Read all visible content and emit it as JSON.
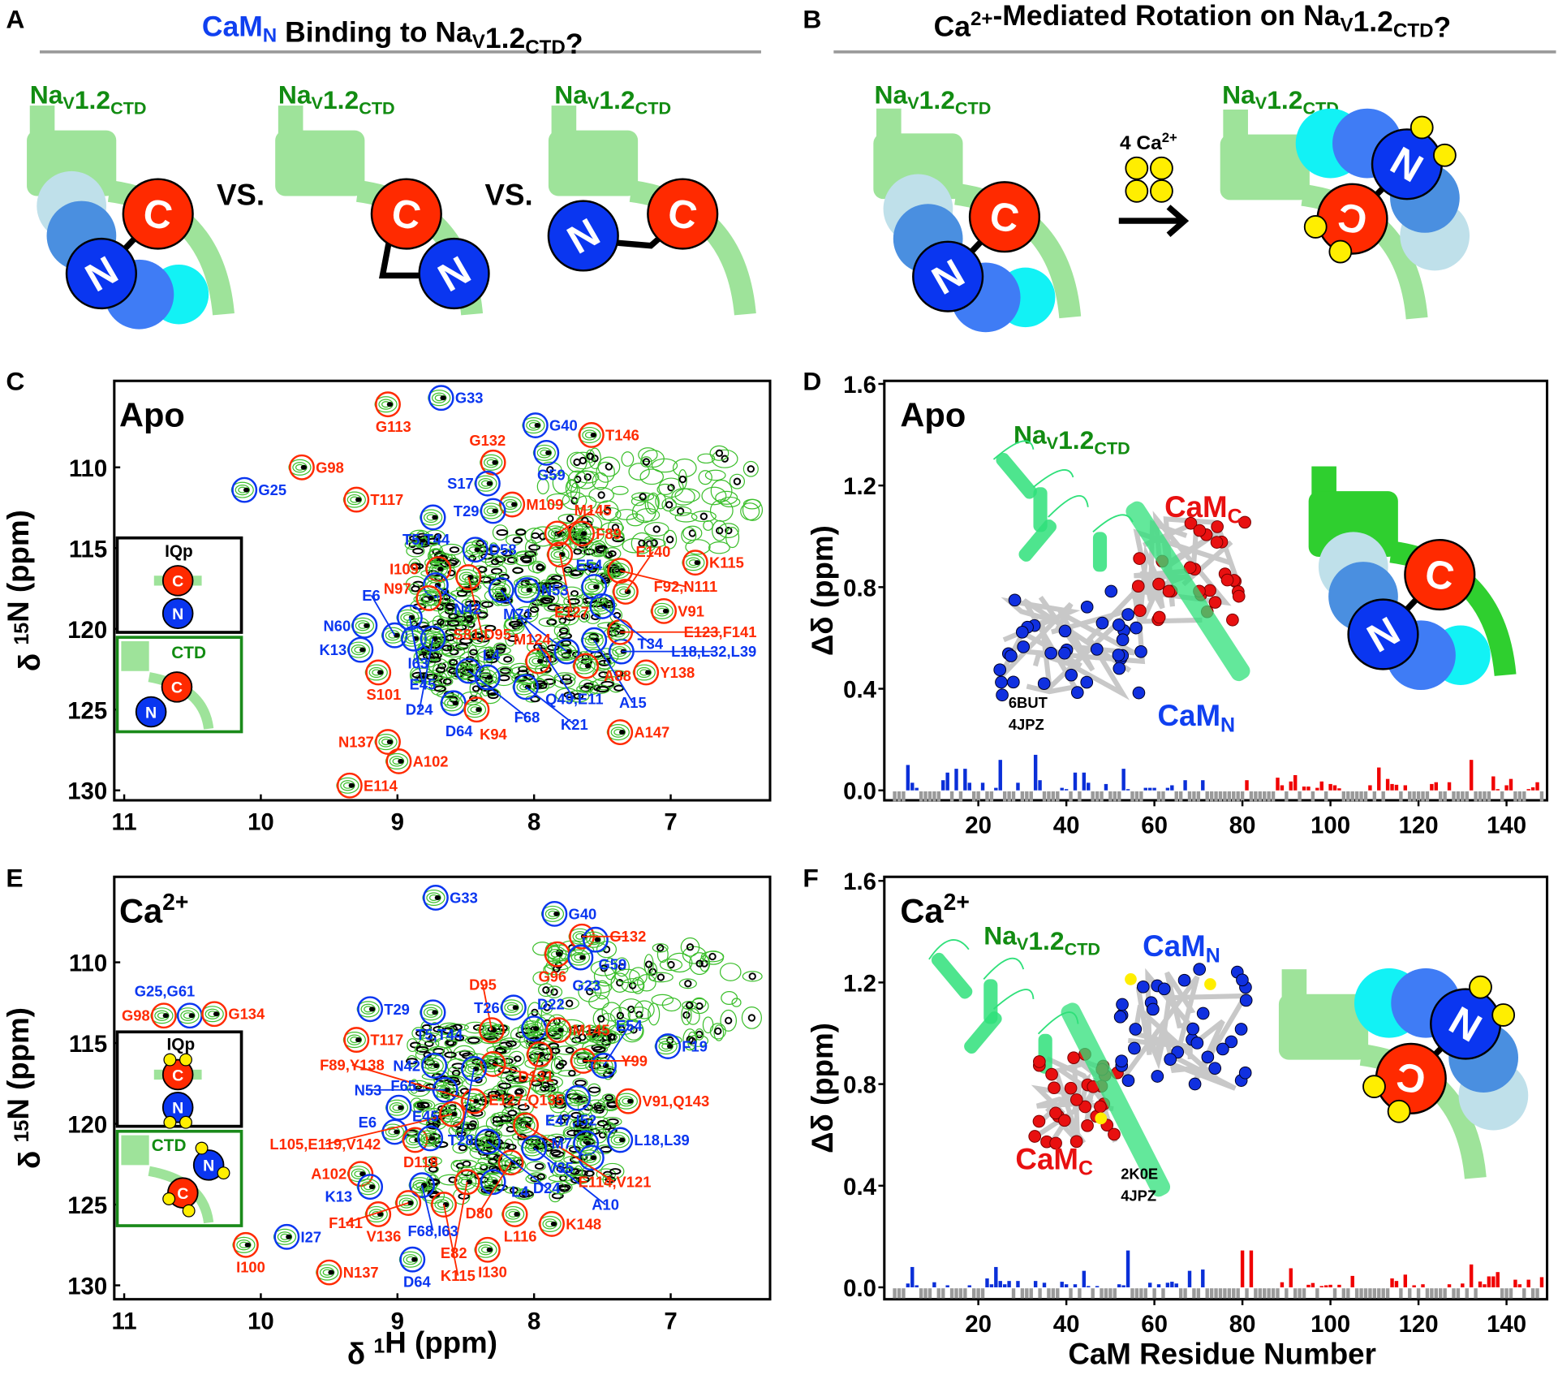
{
  "panel_letters": {
    "a": "A",
    "b": "B",
    "c": "C",
    "d": "D",
    "e": "E",
    "f": "F"
  },
  "colors": {
    "red": "#ff2a00",
    "blue": "#0a36f0",
    "green_text": "#128c12",
    "ctd_green": "#9ee39a",
    "ctd_dark": "#2fcf2f",
    "light_blue": "#bfe0ea",
    "mid_blue": "#4a8fe0",
    "royal_blue": "#3f7cf5",
    "cyan": "#12f2f5",
    "yellow": "#ffee00",
    "gray": "#9a9a9a"
  },
  "cartoon_letters": {
    "c": "C",
    "n": "N"
  },
  "nav_label": [
    [
      "Na",
      ""
    ],
    [
      "V",
      "sub"
    ],
    [
      "1.2",
      ""
    ],
    [
      "CTD",
      "sub"
    ]
  ],
  "panelA": {
    "title": [
      [
        "CaM",
        "",
        "#1040f0"
      ],
      [
        "N",
        "sub",
        "#1040f0"
      ],
      [
        " Binding to Na",
        ""
      ],
      [
        "V",
        "sub"
      ],
      [
        "1.2",
        ""
      ],
      [
        "CTD",
        "sub"
      ],
      [
        "?",
        ""
      ]
    ],
    "vs": "VS."
  },
  "panelB": {
    "title": [
      [
        "Ca",
        ""
      ],
      [
        "2+",
        "sup"
      ],
      [
        "-Mediated Rotation on Na",
        ""
      ],
      [
        "V",
        "sub"
      ],
      [
        "1.2",
        ""
      ],
      [
        "CTD",
        "sub"
      ],
      [
        "?",
        ""
      ]
    ],
    "calcium": [
      [
        "4 Ca",
        ""
      ],
      [
        "2+",
        "sup"
      ]
    ]
  },
  "insets": {
    "iqp": "IQp",
    "ctd": "CTD"
  },
  "structures": {
    "apo": {
      "camc": [
        [
          "CaM",
          ""
        ],
        [
          "C",
          "sub"
        ]
      ],
      "camn": [
        [
          "CaM",
          ""
        ],
        [
          "N",
          "sub"
        ]
      ],
      "pdb": [
        "6BUT",
        "4JPZ"
      ]
    },
    "ca": {
      "camc": [
        [
          "CaM",
          ""
        ],
        [
          "C",
          "sub"
        ]
      ],
      "camn": [
        [
          "CaM",
          ""
        ],
        [
          "N",
          "sub"
        ]
      ],
      "pdb": [
        "2K0E",
        "4JPZ"
      ]
    }
  },
  "chart_data": [
    {
      "panel": "C",
      "type": "scatter",
      "title": "Apo",
      "xlabel": "",
      "ylabel": [
        [
          "δ ",
          ""
        ],
        [
          "15",
          "sup"
        ],
        [
          "N (ppm)",
          ""
        ]
      ],
      "xlim": [
        11,
        6.3
      ],
      "ylim": [
        104,
        131
      ],
      "xticks": [
        11,
        10,
        9,
        8,
        7
      ],
      "yticks": [
        110,
        115,
        120,
        125,
        130
      ],
      "peaks": [
        [
          "G113",
          9.07,
          106.1,
          "r"
        ],
        [
          "G33",
          8.68,
          105.7,
          "b"
        ],
        [
          "G25",
          10.12,
          111.4,
          "b"
        ],
        [
          "G98",
          9.7,
          110.0,
          "r"
        ],
        [
          "T117",
          9.3,
          112.0,
          "r"
        ],
        [
          "G40",
          7.99,
          107.4,
          "b"
        ],
        [
          "T146",
          7.58,
          108.0,
          "r"
        ],
        [
          "G132",
          8.3,
          109.7,
          "r"
        ],
        [
          "G59",
          7.91,
          109.1,
          "b"
        ],
        [
          "S17",
          8.34,
          111.0,
          "b"
        ],
        [
          "M109",
          8.16,
          112.3,
          "r"
        ],
        [
          "T29",
          8.3,
          112.7,
          "b"
        ],
        [
          "T5,T44",
          8.74,
          113.1,
          "b"
        ],
        [
          "D58",
          8.43,
          115.1,
          "b"
        ],
        [
          "M145",
          7.83,
          114.1,
          "r"
        ],
        [
          "F89",
          7.65,
          114.1,
          "r"
        ],
        [
          "E127",
          7.81,
          115.4,
          "r"
        ],
        [
          "F92,N111",
          7.37,
          116.4,
          "r"
        ],
        [
          "K115",
          6.82,
          115.9,
          "r"
        ],
        [
          "I109",
          8.7,
          116.3,
          "r"
        ],
        [
          "N42",
          8.72,
          117.3,
          "b"
        ],
        [
          "N97",
          8.77,
          118.1,
          "r"
        ],
        [
          "S81,D95",
          8.48,
          116.8,
          "r"
        ],
        [
          "Q49,E11",
          8.24,
          117.6,
          "b"
        ],
        [
          "N53",
          8.05,
          117.6,
          "b"
        ],
        [
          "E54",
          7.56,
          117.4,
          "b"
        ],
        [
          "T34",
          7.5,
          118.6,
          "b"
        ],
        [
          "E140",
          7.33,
          117.7,
          "r"
        ],
        [
          "V91",
          7.05,
          118.9,
          "r"
        ],
        [
          "I63",
          8.91,
          119.3,
          "b"
        ],
        [
          "N60",
          9.24,
          119.8,
          "b"
        ],
        [
          "E6",
          9.02,
          120.4,
          "b"
        ],
        [
          "E45",
          8.88,
          120.6,
          "b"
        ],
        [
          "D24",
          8.74,
          120.6,
          "b"
        ],
        [
          "K13",
          9.27,
          121.3,
          "b"
        ],
        [
          "S101",
          9.14,
          122.7,
          "r"
        ],
        [
          "F68",
          8.48,
          122.6,
          "b"
        ],
        [
          "L4",
          8.34,
          123.0,
          "b"
        ],
        [
          "D64",
          8.59,
          124.6,
          "b"
        ],
        [
          "K94",
          8.42,
          125.0,
          "r"
        ],
        [
          "K21",
          8.06,
          123.6,
          "b"
        ],
        [
          "M124",
          7.97,
          122.0,
          "r"
        ],
        [
          "M71",
          7.76,
          121.4,
          "b"
        ],
        [
          "A88",
          7.62,
          122.3,
          "r"
        ],
        [
          "A15",
          7.56,
          120.7,
          "b"
        ],
        [
          "L18,L32,L39",
          7.36,
          121.4,
          "b"
        ],
        [
          "E123,F141",
          7.37,
          120.2,
          "r"
        ],
        [
          "Y138",
          7.18,
          122.7,
          "r"
        ],
        [
          "A147",
          7.37,
          126.4,
          "r"
        ],
        [
          "N137",
          9.07,
          127.0,
          "r"
        ],
        [
          "A102",
          8.99,
          128.2,
          "r"
        ],
        [
          "E114",
          9.35,
          129.7,
          "r"
        ]
      ]
    },
    {
      "panel": "E",
      "type": "scatter",
      "title": [
        [
          "Ca",
          ""
        ],
        [
          "2+",
          "sup"
        ]
      ],
      "xlabel": [
        [
          "δ ",
          ""
        ],
        [
          "1",
          "sup"
        ],
        [
          "H (ppm)",
          ""
        ]
      ],
      "ylabel": [
        [
          "δ ",
          ""
        ],
        [
          "15",
          "sup"
        ],
        [
          "N (ppm)",
          ""
        ]
      ],
      "xlim": [
        11,
        6.3
      ],
      "ylim": [
        104,
        131
      ],
      "xticks": [
        11,
        10,
        9,
        8,
        7
      ],
      "yticks": [
        110,
        115,
        120,
        125,
        130
      ],
      "peaks": [
        [
          "G33",
          8.72,
          106.0,
          "b"
        ],
        [
          "G40",
          7.85,
          107.0,
          "b"
        ],
        [
          "G132",
          7.65,
          108.4,
          "r"
        ],
        [
          "G59",
          7.55,
          108.6,
          "b"
        ],
        [
          "G96",
          7.83,
          109.5,
          "r"
        ],
        [
          "G23",
          7.66,
          109.7,
          "b"
        ],
        [
          "G98",
          10.71,
          113.3,
          "r"
        ],
        [
          "G25,G61",
          10.52,
          113.3,
          "b"
        ],
        [
          "G134",
          10.34,
          113.2,
          "r"
        ],
        [
          "T29",
          9.2,
          112.9,
          "b"
        ],
        [
          "T5,T44",
          8.74,
          113.1,
          "b"
        ],
        [
          "T117",
          9.3,
          114.8,
          "r"
        ],
        [
          "T26",
          8.15,
          112.8,
          "b"
        ],
        [
          "D22",
          8.0,
          114.1,
          "b"
        ],
        [
          "M145",
          7.82,
          114.2,
          "r"
        ],
        [
          "D95",
          8.31,
          114.2,
          "r"
        ],
        [
          "E127,Q135",
          7.96,
          115.7,
          "r"
        ],
        [
          "Y99",
          7.64,
          116.1,
          "r"
        ],
        [
          "E54",
          7.49,
          116.4,
          "b"
        ],
        [
          "F19",
          7.02,
          115.2,
          "b"
        ],
        [
          "D131",
          8.3,
          116.3,
          "r"
        ],
        [
          "T28",
          8.44,
          116.6,
          "b"
        ],
        [
          "N42",
          8.73,
          116.4,
          "b"
        ],
        [
          "N53",
          8.65,
          117.9,
          "b"
        ],
        [
          "F89,Y138",
          8.44,
          118.6,
          "r"
        ],
        [
          "L105,E119,V142",
          8.6,
          119.4,
          "r"
        ],
        [
          "F65",
          8.99,
          119.0,
          "b"
        ],
        [
          "E6",
          9.02,
          120.5,
          "b"
        ],
        [
          "D118",
          8.87,
          121.0,
          "r"
        ],
        [
          "E45",
          8.76,
          120.9,
          "b"
        ],
        [
          "D24",
          8.34,
          121.1,
          "b"
        ],
        [
          "E114,V121",
          8.06,
          120.1,
          "r"
        ],
        [
          "E47,I52",
          7.68,
          118.4,
          "b"
        ],
        [
          "V91,Q143",
          7.31,
          118.6,
          "r"
        ],
        [
          "M7",
          7.62,
          121.2,
          "b"
        ],
        [
          "L18,L39",
          7.37,
          121.0,
          "b"
        ],
        [
          "V35",
          7.58,
          122.1,
          "b"
        ],
        [
          "A10",
          8.0,
          121.5,
          "b"
        ],
        [
          "D80",
          8.17,
          122.4,
          "r"
        ],
        [
          "A102",
          9.27,
          123.1,
          "r"
        ],
        [
          "K13",
          9.2,
          123.9,
          "b"
        ],
        [
          "F68,I63",
          8.82,
          123.8,
          "b"
        ],
        [
          "E82",
          8.49,
          123.6,
          "r"
        ],
        [
          "L4",
          8.3,
          123.6,
          "b"
        ],
        [
          "V136",
          9.14,
          125.6,
          "r"
        ],
        [
          "F141",
          8.92,
          124.9,
          "r"
        ],
        [
          "K115",
          8.66,
          125.0,
          "r"
        ],
        [
          "L116",
          8.14,
          125.6,
          "r"
        ],
        [
          "K148",
          7.87,
          126.2,
          "r"
        ],
        [
          "I27",
          9.81,
          127.0,
          "b"
        ],
        [
          "I100",
          10.11,
          127.5,
          "r"
        ],
        [
          "D64",
          8.89,
          128.4,
          "b"
        ],
        [
          "I130",
          8.34,
          127.8,
          "r"
        ],
        [
          "N137",
          9.5,
          129.2,
          "r"
        ]
      ]
    },
    {
      "panel": "D",
      "type": "bar",
      "title": "Apo",
      "xlabel": "",
      "ylabel": "Δδ (ppm)",
      "xlim": [
        0,
        148
      ],
      "ylim": [
        0,
        1.6
      ],
      "xticks": [
        20,
        40,
        60,
        80,
        100,
        120,
        140
      ],
      "yticks": [
        "0.0",
        "0.4",
        "0.8",
        "1.2",
        "1.6"
      ],
      "lobes": {
        "N": [
          1,
          78
        ],
        "C": [
          79,
          148
        ]
      },
      "residues": [
        4,
        5,
        6,
        12,
        13,
        15,
        17,
        18,
        21,
        24,
        25,
        29,
        33,
        34,
        39,
        40,
        42,
        44,
        45,
        49,
        53,
        54,
        58,
        59,
        60,
        63,
        64,
        67,
        71,
        81,
        88,
        89,
        91,
        92,
        94,
        95,
        97,
        98,
        100,
        101,
        102,
        109,
        111,
        113,
        114,
        115,
        117,
        123,
        124,
        127,
        132,
        137,
        138,
        140,
        141,
        145,
        146,
        147
      ],
      "values": [
        0.1,
        0.03,
        0.01,
        0.04,
        0.07,
        0.085,
        0.085,
        0.03,
        0.03,
        0.01,
        0.12,
        0.03,
        0.14,
        0.04,
        0.01,
        0.005,
        0.07,
        0.07,
        0.03,
        0.025,
        0.085,
        0.005,
        0.01,
        0.01,
        0.01,
        0.01,
        0.02,
        0.04,
        0.04,
        0.04,
        0.05,
        0.02,
        0.035,
        0.06,
        0.015,
        0.015,
        0.01,
        0.035,
        0.025,
        0.02,
        0.008,
        0.02,
        0.09,
        0.045,
        0.025,
        0.022,
        0.02,
        0.025,
        0.032,
        0.032,
        0.12,
        0.055,
        0.005,
        0.02,
        0.045,
        0.005,
        0.012,
        0.032
      ]
    },
    {
      "panel": "F",
      "type": "bar",
      "title": [
        [
          "Ca",
          ""
        ],
        [
          "2+",
          "sup"
        ]
      ],
      "xlabel": "CaM Residue Number",
      "ylabel": "Δδ (ppm)",
      "xlim": [
        0,
        148
      ],
      "ylim": [
        0,
        1.6
      ],
      "xticks": [
        20,
        40,
        60,
        80,
        100,
        120,
        140
      ],
      "yticks": [
        "0.0",
        "0.4",
        "0.8",
        "1.2",
        "1.6"
      ],
      "lobes": {
        "N": [
          1,
          78
        ],
        "C": [
          79,
          148
        ]
      },
      "residues": [
        4,
        5,
        6,
        10,
        13,
        18,
        22,
        23,
        24,
        25,
        26,
        27,
        29,
        33,
        35,
        39,
        40,
        42,
        44,
        45,
        47,
        52,
        53,
        54,
        59,
        61,
        63,
        64,
        65,
        68,
        71,
        80,
        82,
        89,
        91,
        95,
        96,
        98,
        99,
        100,
        102,
        105,
        114,
        115,
        117,
        119,
        121,
        127,
        130,
        132,
        134,
        135,
        136,
        137,
        138,
        142,
        143,
        145,
        148
      ],
      "values": [
        0.015,
        0.08,
        0.008,
        0.02,
        0.008,
        0.008,
        0.035,
        0.012,
        0.08,
        0.025,
        0.012,
        0.025,
        0.025,
        0.025,
        0.018,
        0.022,
        0.012,
        0.012,
        0.065,
        0.005,
        0.005,
        0.012,
        0.008,
        0.145,
        0.018,
        0.012,
        0.018,
        0.022,
        0.015,
        0.065,
        0.07,
        0.145,
        0.145,
        0.02,
        0.075,
        0.01,
        0.017,
        0.005,
        0.008,
        0.01,
        0.01,
        0.045,
        0.035,
        0.025,
        0.05,
        0.008,
        0.012,
        0.012,
        0.015,
        0.09,
        0.023,
        0.012,
        0.043,
        0.043,
        0.06,
        0.03,
        0.012,
        0.03,
        0.04
      ]
    }
  ]
}
